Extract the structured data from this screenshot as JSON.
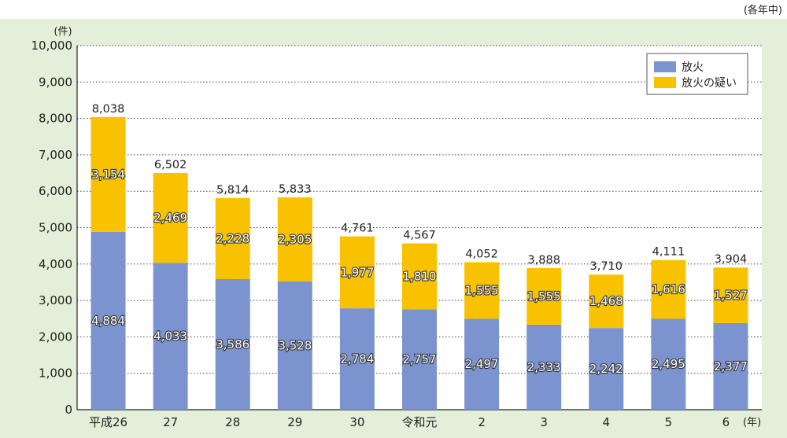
{
  "period_note": "(各年中)",
  "colors": {
    "panel": "#e3efd9",
    "plot_bg": "#ffffff",
    "arson": "#7b93cf",
    "suspected": "#f8c200",
    "grid": "#444444"
  },
  "chart_data": {
    "type": "bar",
    "stacked": true,
    "y_unit": "(件)",
    "x_unit": "(年)",
    "ylim": [
      0,
      10000
    ],
    "yticks": [
      0,
      1000,
      2000,
      3000,
      4000,
      5000,
      6000,
      7000,
      8000,
      9000,
      10000
    ],
    "ytick_labels": [
      "0",
      "1,000",
      "2,000",
      "3,000",
      "4,000",
      "5,000",
      "6,000",
      "7,000",
      "8,000",
      "9,000",
      "10,000"
    ],
    "grid": "dotted horizontal",
    "legend_position": "top-right",
    "categories": [
      "平成26",
      "27",
      "28",
      "29",
      "30",
      "令和元",
      "2",
      "3",
      "4",
      "5",
      "6"
    ],
    "series": [
      {
        "name": "放火",
        "values": [
          4884,
          4033,
          3586,
          3528,
          2784,
          2757,
          2497,
          2333,
          2242,
          2495,
          2377
        ],
        "labels": [
          "4,884",
          "4,033",
          "3,586",
          "3,528",
          "2,784",
          "2,757",
          "2,497",
          "2,333",
          "2,242",
          "2,495",
          "2,377"
        ]
      },
      {
        "name": "放火の疑い",
        "values": [
          3154,
          2469,
          2228,
          2305,
          1977,
          1810,
          1555,
          1555,
          1468,
          1616,
          1527
        ],
        "labels": [
          "3,154",
          "2,469",
          "2,228",
          "2,305",
          "1,977",
          "1,810",
          "1,555",
          "1,555",
          "1,468",
          "1,616",
          "1,527"
        ]
      }
    ],
    "totals": [
      8038,
      6502,
      5814,
      5833,
      4761,
      4567,
      4052,
      3888,
      3710,
      4111,
      3904
    ],
    "total_labels": [
      "8,038",
      "6,502",
      "5,814",
      "5,833",
      "4,761",
      "4,567",
      "4,052",
      "3,888",
      "3,710",
      "4,111",
      "3,904"
    ]
  }
}
